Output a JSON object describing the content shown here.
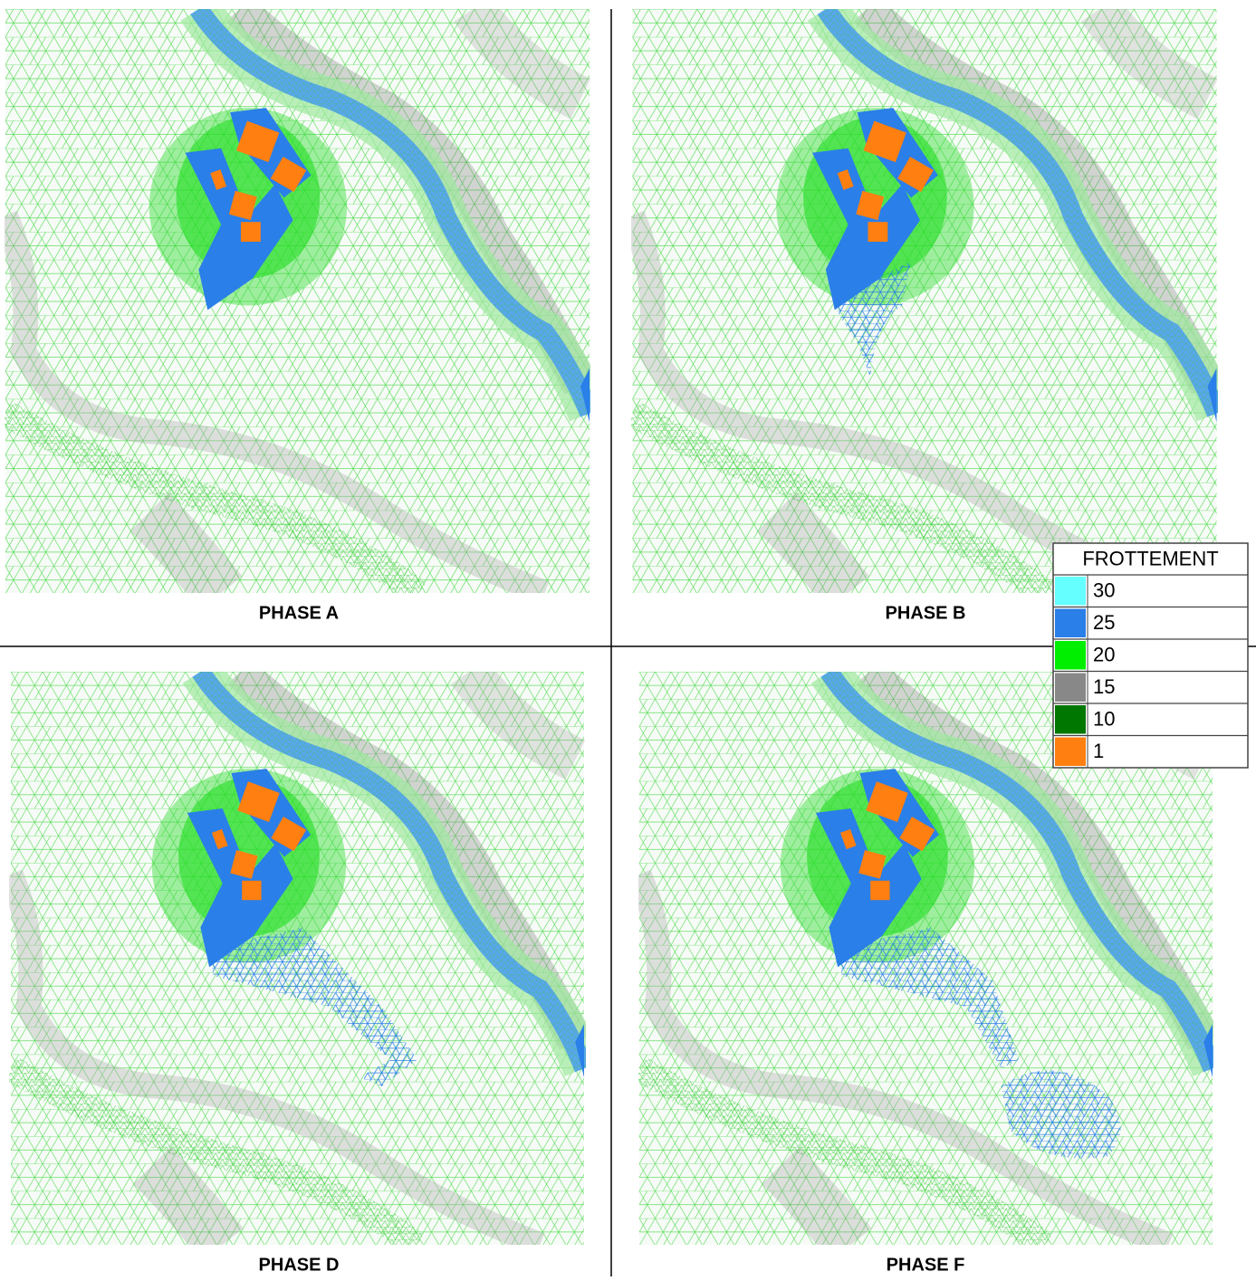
{
  "panels": [
    {
      "caption": "PHASE A"
    },
    {
      "caption": "PHASE B"
    },
    {
      "caption": "PHASE D"
    },
    {
      "caption": "PHASE F"
    }
  ],
  "legend": {
    "title": "FROTTEMENT",
    "entries": [
      {
        "label": "30",
        "color": "#66ffff"
      },
      {
        "label": "25",
        "color": "#2a7fe8"
      },
      {
        "label": "20",
        "color": "#00ee00"
      },
      {
        "label": "15",
        "color": "#888888"
      },
      {
        "label": "10",
        "color": "#007700"
      },
      {
        "label": "1",
        "color": "#ff7f10"
      }
    ]
  }
}
